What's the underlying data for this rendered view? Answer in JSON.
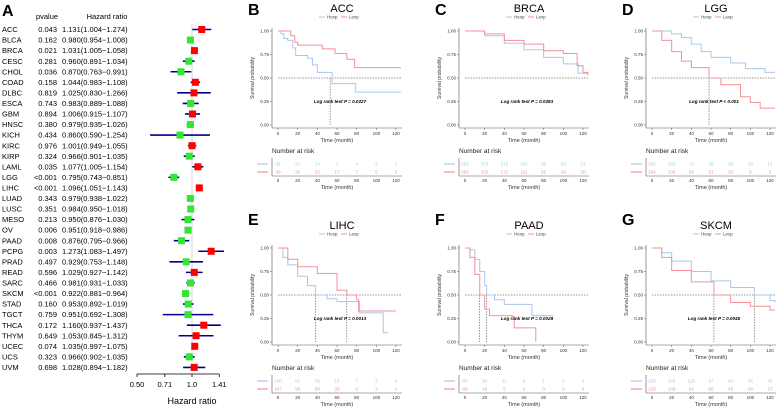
{
  "chart_data": [
    {
      "panel": "A",
      "type": "forest",
      "headers": {
        "pvalue": "pvalue",
        "hr": "Hazard ratio"
      },
      "xlabel": "Hazard ratio",
      "xscale": "log",
      "xticks": [
        "0.50",
        "0.71",
        "1.0",
        "1.41"
      ],
      "xlim": [
        0.5,
        1.41
      ],
      "reference_line": 1.0,
      "colors": {
        "hr_above_1": "#ff0000",
        "hr_below_1": "#33e633",
        "ci_line": "#00008b",
        "reference": "#dddddd"
      },
      "rows": [
        {
          "name": "ACC",
          "p": "0.043",
          "hr": 1.131,
          "lo": 1.004,
          "hi": 1.274,
          "label": "1.131(1.004−1.274)"
        },
        {
          "name": "BLCA",
          "p": "0.162",
          "hr": 0.98,
          "lo": 0.954,
          "hi": 1.008,
          "label": "0.980(0.954−1.008)"
        },
        {
          "name": "BRCA",
          "p": "0.021",
          "hr": 1.031,
          "lo": 1.005,
          "hi": 1.058,
          "label": "1.031(1.005−1.058)"
        },
        {
          "name": "CESC",
          "p": "0.281",
          "hr": 0.96,
          "lo": 0.891,
          "hi": 1.034,
          "label": "0.960(0.891−1.034)"
        },
        {
          "name": "CHOL",
          "p": "0.036",
          "hr": 0.87,
          "lo": 0.763,
          "hi": 0.991,
          "label": "0.870(0.763−0.991)"
        },
        {
          "name": "COAD",
          "p": "0.158",
          "hr": 1.044,
          "lo": 0.983,
          "hi": 1.108,
          "label": "1.044(0.983−1.108)"
        },
        {
          "name": "DLBC",
          "p": "0.819",
          "hr": 1.025,
          "lo": 0.83,
          "hi": 1.266,
          "label": "1.025(0.830−1.266)"
        },
        {
          "name": "ESCA",
          "p": "0.743",
          "hr": 0.983,
          "lo": 0.889,
          "hi": 1.088,
          "label": "0.983(0.889−1.088)"
        },
        {
          "name": "GBM",
          "p": "0.894",
          "hr": 1.006,
          "lo": 0.915,
          "hi": 1.107,
          "label": "1.006(0.915−1.107)"
        },
        {
          "name": "HNSC",
          "p": "0.380",
          "hr": 0.979,
          "lo": 0.935,
          "hi": 1.026,
          "label": "0.979(0.935−1.026)"
        },
        {
          "name": "KICH",
          "p": "0.434",
          "hr": 0.86,
          "lo": 0.59,
          "hi": 1.254,
          "label": "0.860(0.590−1.254)"
        },
        {
          "name": "KIRC",
          "p": "0.976",
          "hr": 1.001,
          "lo": 0.949,
          "hi": 1.055,
          "label": "1.001(0.949−1.055)"
        },
        {
          "name": "KIRP",
          "p": "0.324",
          "hr": 0.966,
          "lo": 0.901,
          "hi": 1.035,
          "label": "0.966(0.901−1.035)"
        },
        {
          "name": "LAML",
          "p": "0.035",
          "hr": 1.077,
          "lo": 1.005,
          "hi": 1.154,
          "label": "1.077(1.005−1.154)"
        },
        {
          "name": "LGG",
          "p": "<0.001",
          "hr": 0.795,
          "lo": 0.743,
          "hi": 0.851,
          "label": "0.795(0.743−0.851)"
        },
        {
          "name": "LIHC",
          "p": "<0.001",
          "hr": 1.096,
          "lo": 1.051,
          "hi": 1.143,
          "label": "1.096(1.051−1.143)"
        },
        {
          "name": "LUAD",
          "p": "0.343",
          "hr": 0.979,
          "lo": 0.938,
          "hi": 1.022,
          "label": "0.979(0.938−1.022)"
        },
        {
          "name": "LUSC",
          "p": "0.351",
          "hr": 0.984,
          "lo": 0.95,
          "hi": 1.018,
          "label": "0.984(0.950−1.018)"
        },
        {
          "name": "MESO",
          "p": "0.213",
          "hr": 0.95,
          "lo": 0.876,
          "hi": 1.03,
          "label": "0.950(0.876−1.030)"
        },
        {
          "name": "OV",
          "p": "0.006",
          "hr": 0.951,
          "lo": 0.918,
          "hi": 0.986,
          "label": "0.951(0.918−0.986)"
        },
        {
          "name": "PAAD",
          "p": "0.008",
          "hr": 0.876,
          "lo": 0.795,
          "hi": 0.966,
          "label": "0.876(0.795−0.966)"
        },
        {
          "name": "PCPG",
          "p": "0.003",
          "hr": 1.273,
          "lo": 1.083,
          "hi": 1.497,
          "label": "1.273(1.083−1.497)"
        },
        {
          "name": "PRAD",
          "p": "0.497",
          "hr": 0.929,
          "lo": 0.753,
          "hi": 1.148,
          "label": "0.929(0.753−1.148)"
        },
        {
          "name": "READ",
          "p": "0.596",
          "hr": 1.029,
          "lo": 0.927,
          "hi": 1.142,
          "label": "1.029(0.927−1.142)"
        },
        {
          "name": "SARC",
          "p": "0.466",
          "hr": 0.981,
          "lo": 0.931,
          "hi": 1.033,
          "label": "0.981(0.931−1.033)"
        },
        {
          "name": "SKCM",
          "p": "<0.001",
          "hr": 0.922,
          "lo": 0.881,
          "hi": 0.964,
          "label": "0.922(0.881−0.964)"
        },
        {
          "name": "STAD",
          "p": "0.160",
          "hr": 0.953,
          "lo": 0.892,
          "hi": 1.019,
          "label": "0.953(0.892−1.019)"
        },
        {
          "name": "TGCT",
          "p": "0.759",
          "hr": 0.951,
          "lo": 0.692,
          "hi": 1.308,
          "label": "0.951(0.692−1.308)"
        },
        {
          "name": "THCA",
          "p": "0.172",
          "hr": 1.16,
          "lo": 0.937,
          "hi": 1.437,
          "label": "1.160(0.937−1.437)"
        },
        {
          "name": "THYM",
          "p": "0.649",
          "hr": 1.053,
          "lo": 0.845,
          "hi": 1.312,
          "label": "1.053(0.845−1.312)"
        },
        {
          "name": "UCEC",
          "p": "0.074",
          "hr": 1.035,
          "lo": 0.997,
          "hi": 1.075,
          "label": "1.035(0.997−1.075)"
        },
        {
          "name": "UCS",
          "p": "0.323",
          "hr": 0.966,
          "lo": 0.902,
          "hi": 1.035,
          "label": "0.966(0.902−1.035)"
        },
        {
          "name": "UVM",
          "p": "0.698",
          "hr": 1.028,
          "lo": 0.894,
          "hi": 1.182,
          "label": "1.028(0.894−1.182)"
        }
      ]
    },
    {
      "panel": "B",
      "type": "line",
      "title": "ACC",
      "pvalue_text": "Log rank test P = 0.0227",
      "medians": {
        "Hexp": 53
      },
      "series": [
        {
          "name": "Hexp",
          "points": [
            [
              0,
              1
            ],
            [
              3,
              0.97
            ],
            [
              6,
              0.92
            ],
            [
              10,
              0.9
            ],
            [
              15,
              0.82
            ],
            [
              18,
              0.74
            ],
            [
              30,
              0.71
            ],
            [
              35,
              0.64
            ],
            [
              40,
              0.56
            ],
            [
              53,
              0.56
            ],
            [
              55,
              0.44
            ],
            [
              78,
              0.44
            ],
            [
              79,
              0.35
            ],
            [
              125,
              0.35
            ]
          ],
          "risk": [
            39,
            27,
            14,
            7,
            4,
            2,
            1
          ]
        },
        {
          "name": "Lexp",
          "points": [
            [
              0,
              1
            ],
            [
              13,
              0.95
            ],
            [
              17,
              0.88
            ],
            [
              20,
              0.85
            ],
            [
              45,
              0.81
            ],
            [
              58,
              0.76
            ],
            [
              70,
              0.7
            ],
            [
              78,
              0.61
            ],
            [
              125,
              0.61
            ]
          ],
          "risk": [
            40,
            34,
            22,
            17,
            7,
            5,
            3
          ]
        }
      ]
    },
    {
      "panel": "C",
      "type": "line",
      "title": "BRCA",
      "pvalue_text": "Log rank test P = 0.0283",
      "medians": {},
      "series": [
        {
          "name": "Hexp",
          "points": [
            [
              0,
              1
            ],
            [
              20,
              0.95
            ],
            [
              40,
              0.87
            ],
            [
              60,
              0.8
            ],
            [
              80,
              0.72
            ],
            [
              100,
              0.65
            ],
            [
              115,
              0.55
            ],
            [
              125,
              0.54
            ]
          ],
          "risk": [
            553,
            375,
            218,
            142,
            89,
            53,
            21
          ]
        },
        {
          "name": "Lexp",
          "points": [
            [
              0,
              1
            ],
            [
              20,
              0.97
            ],
            [
              40,
              0.9
            ],
            [
              60,
              0.86
            ],
            [
              80,
              0.79
            ],
            [
              100,
              0.76
            ],
            [
              113,
              0.76
            ],
            [
              114,
              0.63
            ],
            [
              120,
              0.56
            ],
            [
              125,
              0.53
            ]
          ],
          "risk": [
            554,
            325,
            171,
            111,
            66,
            34,
            20
          ]
        }
      ]
    },
    {
      "panel": "D",
      "type": "line",
      "title": "LGG",
      "pvalue_text": "Log rank test P < 0.001",
      "medians": {
        "Lexp": 58
      },
      "series": [
        {
          "name": "Hexp",
          "points": [
            [
              0,
              1
            ],
            [
              20,
              0.97
            ],
            [
              30,
              0.93
            ],
            [
              40,
              0.86
            ],
            [
              50,
              0.78
            ],
            [
              60,
              0.72
            ],
            [
              80,
              0.66
            ],
            [
              95,
              0.6
            ],
            [
              115,
              0.56
            ],
            [
              125,
              0.56
            ]
          ],
          "risk": [
            263,
            153,
            73,
            39,
            26,
            16,
            14
          ]
        },
        {
          "name": "Lexp",
          "points": [
            [
              0,
              1
            ],
            [
              10,
              0.9
            ],
            [
              20,
              0.78
            ],
            [
              30,
              0.68
            ],
            [
              40,
              0.61
            ],
            [
              58,
              0.5
            ],
            [
              70,
              0.43
            ],
            [
              90,
              0.3
            ],
            [
              100,
              0.24
            ],
            [
              110,
              0.18
            ],
            [
              125,
              0.18
            ]
          ],
          "risk": [
            264,
            138,
            65,
            31,
            20,
            8,
            5
          ]
        }
      ]
    },
    {
      "panel": "E",
      "type": "line",
      "title": "LIHC",
      "pvalue_text": "Log rank test P = 0.0013",
      "medians": {
        "Hexp": 38,
        "Lexp": 70
      },
      "series": [
        {
          "name": "Hexp",
          "points": [
            [
              0,
              1
            ],
            [
              5,
              0.9
            ],
            [
              10,
              0.82
            ],
            [
              20,
              0.7
            ],
            [
              30,
              0.6
            ],
            [
              38,
              0.5
            ],
            [
              50,
              0.46
            ],
            [
              60,
              0.43
            ],
            [
              82,
              0.43
            ],
            [
              83,
              0.31
            ],
            [
              105,
              0.31
            ],
            [
              107,
              0.1
            ],
            [
              112,
              0.1
            ]
          ],
          "risk": [
            186,
            82,
            35,
            15,
            7,
            3,
            0
          ]
        },
        {
          "name": "Lexp",
          "points": [
            [
              0,
              1
            ],
            [
              10,
              0.88
            ],
            [
              20,
              0.8
            ],
            [
              40,
              0.73
            ],
            [
              60,
              0.55
            ],
            [
              70,
              0.5
            ],
            [
              80,
              0.45
            ],
            [
              82,
              0.33
            ],
            [
              120,
              0.33
            ]
          ],
          "risk": [
            187,
            98,
            50,
            28,
            9,
            3,
            1
          ]
        }
      ]
    },
    {
      "panel": "F",
      "type": "line",
      "title": "PAAD",
      "pvalue_text": "Log rank test P = 0.0028",
      "medians": {
        "Lexp": 15,
        "Hexp": 22
      },
      "series": [
        {
          "name": "Hexp",
          "points": [
            [
              0,
              1
            ],
            [
              5,
              0.98
            ],
            [
              10,
              0.88
            ],
            [
              15,
              0.75
            ],
            [
              20,
              0.6
            ],
            [
              22,
              0.5
            ],
            [
              30,
              0.45
            ],
            [
              40,
              0.4
            ],
            [
              67,
              0.4
            ],
            [
              68,
              0.28
            ],
            [
              90,
              0.28
            ]
          ],
          "risk": [
            89,
            30,
            11,
            6,
            1,
            0,
            0
          ]
        },
        {
          "name": "Lexp",
          "points": [
            [
              0,
              1
            ],
            [
              5,
              0.9
            ],
            [
              10,
              0.72
            ],
            [
              15,
              0.5
            ],
            [
              20,
              0.35
            ],
            [
              25,
              0.28
            ],
            [
              48,
              0.27
            ],
            [
              50,
              0.15
            ],
            [
              72,
              0.15
            ],
            [
              72,
              0
            ]
          ],
          "risk": [
            89,
            19,
            5,
            2,
            0,
            0,
            0
          ]
        }
      ]
    },
    {
      "panel": "G",
      "type": "line",
      "title": "SKCM",
      "pvalue_text": "Log rank test P = 0.0045",
      "medians": {
        "Lexp": 63,
        "Hexp": 104
      },
      "series": [
        {
          "name": "Hexp",
          "points": [
            [
              0,
              1
            ],
            [
              10,
              0.95
            ],
            [
              20,
              0.86
            ],
            [
              40,
              0.75
            ],
            [
              60,
              0.65
            ],
            [
              80,
              0.58
            ],
            [
              104,
              0.5
            ],
            [
              120,
              0.44
            ],
            [
              125,
              0.42
            ]
          ],
          "risk": [
            228,
            166,
            125,
            87,
            64,
            55,
            42
          ]
        },
        {
          "name": "Lexp",
          "points": [
            [
              0,
              1
            ],
            [
              10,
              0.9
            ],
            [
              20,
              0.76
            ],
            [
              40,
              0.64
            ],
            [
              63,
              0.5
            ],
            [
              80,
              0.42
            ],
            [
              100,
              0.38
            ],
            [
              120,
              0.34
            ],
            [
              125,
              0.34
            ]
          ],
          "risk": [
            228,
            149,
            92,
            66,
            45,
            34,
            27
          ]
        }
      ]
    }
  ],
  "km_common": {
    "ylabel": "Survival probability",
    "xlabel": "Time (month)",
    "risk_title": "Number at risk",
    "yticks": [
      "0.00",
      "0.25",
      "0.50",
      "0.75",
      "1.00"
    ],
    "xticks": [
      "0",
      "20",
      "40",
      "60",
      "80",
      "100",
      "120"
    ],
    "xlim": [
      0,
      125
    ],
    "ylim": [
      0,
      1
    ],
    "series_colors": {
      "Hexp": "#a8c8ea",
      "Lexp": "#f4909a"
    }
  }
}
